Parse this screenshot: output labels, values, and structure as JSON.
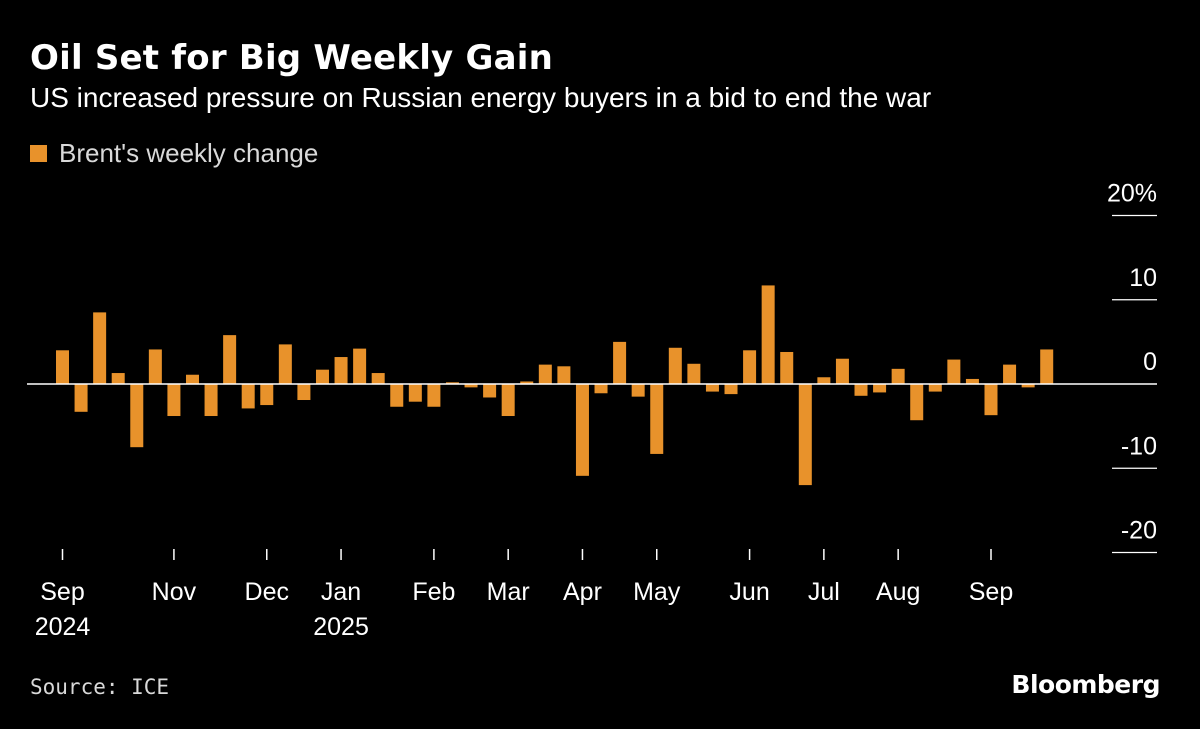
{
  "header": {
    "title": "Oil Set for Big Weekly Gain",
    "subtitle": "US increased pressure on Russian energy buyers in a bid to end the war"
  },
  "legend": {
    "label": "Brent's weekly change"
  },
  "footer": {
    "source": "Source: ICE",
    "logo": "Bloomberg"
  },
  "colors": {
    "bar": "#E8922B",
    "background": "#000000",
    "text": "#ffffff",
    "axis": "#ffffff"
  },
  "chart_data": {
    "type": "bar",
    "title": "Oil Set for Big Weekly Gain",
    "subtitle": "US increased pressure on Russian energy buyers in a bid to end the war",
    "series": [
      {
        "name": "Brent's weekly change",
        "unit": "%",
        "values": [
          4,
          -3.3,
          8.5,
          1.3,
          -7.5,
          4.1,
          -3.8,
          1.1,
          -3.8,
          5.8,
          -2.9,
          -2.5,
          4.7,
          -1.9,
          1.7,
          3.2,
          4.2,
          1.3,
          -2.7,
          -2.1,
          -2.7,
          0.2,
          -0.4,
          -1.6,
          -3.8,
          0.3,
          2.3,
          2.1,
          -10.9,
          -1.1,
          5,
          -1.5,
          -8.3,
          4.3,
          2.4,
          -0.9,
          -1.2,
          4,
          11.7,
          3.8,
          -12,
          0.8,
          3,
          -1.4,
          -1,
          1.8,
          -4.3,
          -0.9,
          2.9,
          0.6,
          -3.7,
          2.3,
          -0.4,
          4.1
        ]
      }
    ],
    "ylim": [
      -20,
      20
    ],
    "yticks": [
      20,
      10,
      0,
      -10,
      -20
    ],
    "ytick_labels": [
      "20%",
      "10",
      "0",
      "-10",
      "-20"
    ],
    "xticks": [
      {
        "index": 0,
        "label": "Sep",
        "sublabel": "2024"
      },
      {
        "index": 6,
        "label": "Nov",
        "sublabel": ""
      },
      {
        "index": 11,
        "label": "Dec",
        "sublabel": ""
      },
      {
        "index": 15,
        "label": "Jan",
        "sublabel": "2025"
      },
      {
        "index": 20,
        "label": "Feb",
        "sublabel": ""
      },
      {
        "index": 24,
        "label": "Mar",
        "sublabel": ""
      },
      {
        "index": 28,
        "label": "Apr",
        "sublabel": ""
      },
      {
        "index": 32,
        "label": "May",
        "sublabel": ""
      },
      {
        "index": 37,
        "label": "Jun",
        "sublabel": ""
      },
      {
        "index": 41,
        "label": "Jul",
        "sublabel": ""
      },
      {
        "index": 45,
        "label": "Aug",
        "sublabel": ""
      },
      {
        "index": 50,
        "label": "Sep",
        "sublabel": ""
      }
    ]
  }
}
